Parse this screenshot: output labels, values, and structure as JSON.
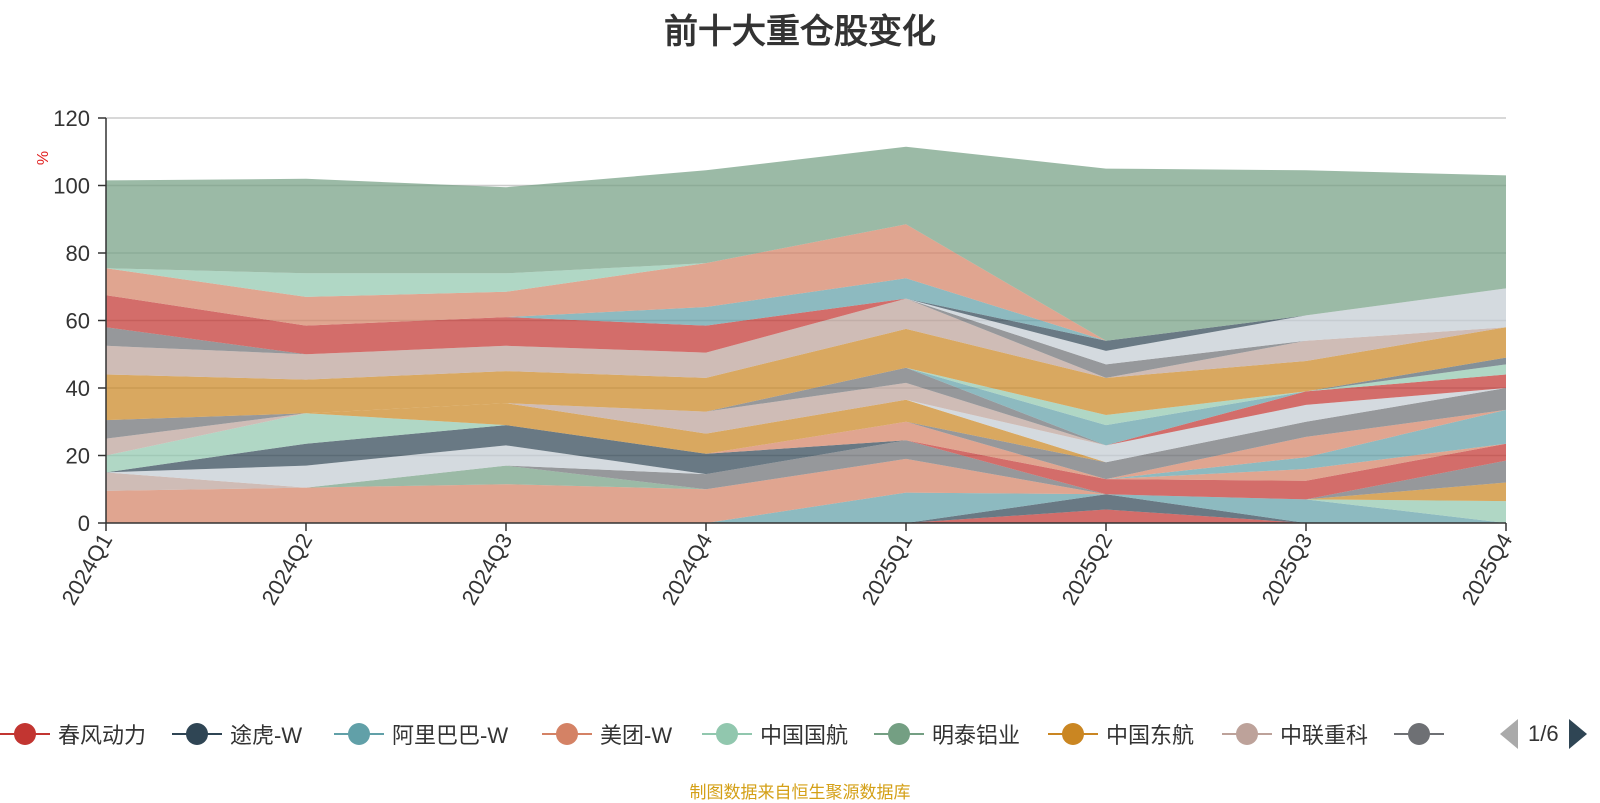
{
  "title": "前十大重仓股变化",
  "source_note": "制图数据来自恒生聚源数据库",
  "legend_pager": {
    "text": "1/6"
  },
  "chart_data": {
    "type": "area",
    "stacked": true,
    "title": "前十大重仓股变化",
    "ylabel": "%",
    "xlabel": "",
    "ylim": [
      0,
      120
    ],
    "yticks": [
      0,
      20,
      40,
      60,
      80,
      100,
      120
    ],
    "grid": true,
    "categories": [
      "2024Q1",
      "2024Q2",
      "2024Q3",
      "2024Q4",
      "2025Q1",
      "2025Q2",
      "2025Q3",
      "2025Q4"
    ],
    "series": [
      {
        "name": "春风动力",
        "color": "#c23531",
        "values": [
          0,
          0,
          0,
          0,
          0,
          4,
          0,
          0
        ]
      },
      {
        "name": "途虎-W",
        "color": "#2f4554",
        "values": [
          0,
          0,
          0,
          0,
          0,
          4.5,
          0,
          0
        ]
      },
      {
        "name": "阿里巴巴-W",
        "color": "#61a0a8",
        "values": [
          0,
          0,
          0,
          0,
          9,
          0,
          7,
          0
        ]
      },
      {
        "name": "美团-W",
        "color": "#d48265",
        "values": [
          9.5,
          10.5,
          11.5,
          10,
          10,
          0,
          0,
          0
        ]
      },
      {
        "name": "中国国航",
        "color": "#91c7ae",
        "values": [
          0,
          0,
          0,
          0,
          0,
          0,
          0,
          6.5
        ]
      },
      {
        "name": "明泰铝业",
        "color": "#749f83",
        "values": [
          0,
          0,
          5.5,
          0,
          0,
          0,
          0,
          0
        ]
      },
      {
        "name": "中国东航",
        "color": "#ca8622",
        "values": [
          0,
          0,
          0,
          0,
          0,
          0,
          0,
          5.5
        ]
      },
      {
        "name": "中联重科",
        "color": "#bda29a",
        "values": [
          5.5,
          0,
          0,
          0,
          0,
          0,
          0,
          0
        ]
      },
      {
        "name": "",
        "color": "#6e7074",
        "values": [
          0,
          0,
          0,
          4.5,
          5.5,
          0,
          0,
          6.5
        ]
      },
      {
        "name": "",
        "color": "#546570",
        "values": [
          0,
          0,
          0,
          0,
          0,
          0,
          0,
          0
        ]
      },
      {
        "name": "",
        "color": "#c4ccd3",
        "values": [
          0,
          6.5,
          6,
          0,
          0,
          0,
          0,
          0
        ]
      },
      {
        "name": "",
        "color": "#c23531",
        "values": [
          0,
          0,
          0,
          0,
          0,
          4.5,
          5.5,
          5
        ]
      },
      {
        "name": "",
        "color": "#d48265",
        "values": [
          0,
          0,
          0,
          0,
          0,
          0,
          3.5,
          0
        ]
      },
      {
        "name": "",
        "color": "#61a0a8",
        "values": [
          0,
          0,
          0,
          0,
          0,
          0,
          3.5,
          10
        ]
      },
      {
        "name": "",
        "color": "#2f4554",
        "values": [
          0,
          6.5,
          6,
          6,
          0,
          0,
          0,
          0
        ]
      },
      {
        "name": "",
        "color": "#d48265",
        "values": [
          0,
          0,
          0,
          0,
          5.5,
          0,
          6,
          0
        ]
      },
      {
        "name": "",
        "color": "#91c7ae",
        "values": [
          5,
          9,
          0,
          0,
          0,
          0,
          0,
          0
        ]
      },
      {
        "name": "",
        "color": "#6e7074",
        "values": [
          0,
          0,
          0,
          0,
          0,
          5,
          4.5,
          6.5
        ]
      },
      {
        "name": "",
        "color": "#ca8622",
        "values": [
          0,
          0,
          6.5,
          6,
          6.5,
          0,
          0,
          0
        ]
      },
      {
        "name": "",
        "color": "#c4ccd3",
        "values": [
          0,
          0,
          0,
          0,
          0,
          5,
          5,
          0
        ]
      },
      {
        "name": "",
        "color": "#bda29a",
        "values": [
          5,
          0,
          0,
          6.5,
          5,
          0,
          0,
          0
        ]
      },
      {
        "name": "",
        "color": "#6e7074",
        "values": [
          5.5,
          0,
          0,
          0,
          4.5,
          0,
          0,
          0
        ]
      },
      {
        "name": "",
        "color": "#c23531",
        "values": [
          0,
          0,
          0,
          0,
          0,
          0,
          4,
          4
        ]
      },
      {
        "name": "",
        "color": "#61a0a8",
        "values": [
          0,
          0,
          0,
          0,
          0,
          6,
          0,
          0
        ]
      },
      {
        "name": "",
        "color": "#91c7ae",
        "values": [
          0,
          0,
          0,
          0,
          0,
          3,
          0,
          3
        ]
      },
      {
        "name": "",
        "color": "#546570",
        "values": [
          0,
          0,
          0,
          0,
          0,
          0,
          0,
          2
        ]
      },
      {
        "name": "",
        "color": "#ca8622",
        "values": [
          13.5,
          10,
          9.5,
          10,
          11.5,
          11,
          9,
          9
        ]
      },
      {
        "name": "",
        "color": "#bda29a",
        "values": [
          8.5,
          7.5,
          7.5,
          7.5,
          9,
          0,
          6,
          0
        ]
      },
      {
        "name": "",
        "color": "#6e7074",
        "values": [
          5.5,
          0,
          0,
          0,
          0,
          4,
          0,
          0
        ]
      },
      {
        "name": "",
        "color": "#c4ccd3",
        "values": [
          0,
          0,
          0,
          0,
          0,
          4,
          7.5,
          11.5
        ]
      },
      {
        "name": "",
        "color": "#2f4554",
        "values": [
          0,
          0,
          0,
          0,
          0,
          3,
          0,
          0
        ]
      },
      {
        "name": "",
        "color": "#c23531",
        "values": [
          9.5,
          8.5,
          8.5,
          8,
          0,
          0,
          0,
          0
        ]
      },
      {
        "name": "",
        "color": "#61a0a8",
        "values": [
          0,
          0,
          0,
          5.5,
          6,
          0,
          0,
          0
        ]
      },
      {
        "name": "",
        "color": "#d48265",
        "values": [
          8,
          8.5,
          7.5,
          13,
          16,
          0,
          0,
          0
        ]
      },
      {
        "name": "",
        "color": "#91c7ae",
        "values": [
          0,
          7,
          5.5,
          0,
          0,
          0,
          0,
          0
        ]
      },
      {
        "name": "",
        "color": "#749f83",
        "values": [
          26,
          28,
          25.5,
          27.5,
          23,
          51,
          43,
          33.5
        ]
      }
    ]
  },
  "legend": [
    {
      "name": "春风动力",
      "color": "#c23531"
    },
    {
      "name": "途虎-W",
      "color": "#2f4554"
    },
    {
      "name": "阿里巴巴-W",
      "color": "#61a0a8"
    },
    {
      "name": "美团-W",
      "color": "#d48265"
    },
    {
      "name": "中国国航",
      "color": "#91c7ae"
    },
    {
      "name": "明泰铝业",
      "color": "#749f83"
    },
    {
      "name": "中国东航",
      "color": "#ca8622"
    },
    {
      "name": "中联重科",
      "color": "#bda29a"
    },
    {
      "name": "",
      "color": "#6e7074"
    }
  ]
}
